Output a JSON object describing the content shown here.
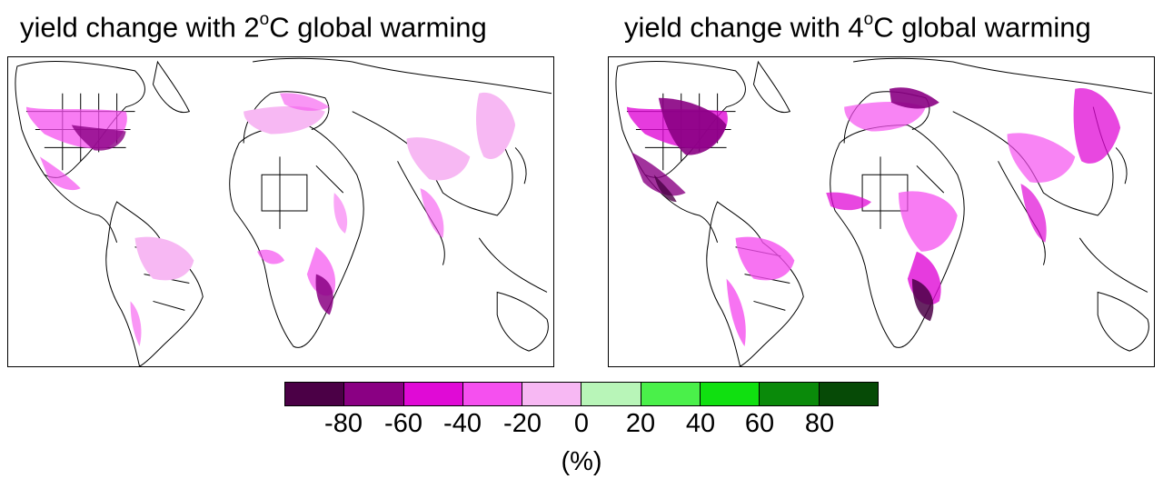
{
  "panels": [
    {
      "title_main": "yield change with 2",
      "title_sup": "o",
      "title_end": "C global warming"
    },
    {
      "title_main": "yield change with 4",
      "title_sup": "o",
      "title_end": "C global warming"
    }
  ],
  "colorbar": {
    "colors": [
      "#4b0046",
      "#8a0083",
      "#e00ad6",
      "#f550ef",
      "#f7b8f3",
      "#b8f5b8",
      "#4af04a",
      "#10e010",
      "#0a8a0a",
      "#064a06"
    ],
    "ticks": [
      "-80",
      "-60",
      "-40",
      "-20",
      "0",
      "20",
      "40",
      "60",
      "80"
    ],
    "unit": "(%)"
  },
  "palette": {
    "land_outline": "#000000",
    "border": "#000000"
  }
}
